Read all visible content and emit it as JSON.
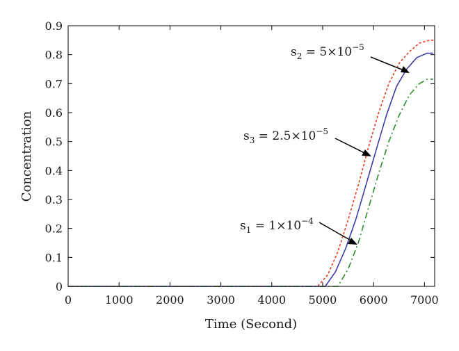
{
  "chart_data": {
    "type": "line",
    "title": "",
    "xlabel": "Time (Second)",
    "ylabel": "Concentration",
    "xlim": [
      0,
      7200
    ],
    "ylim": [
      0,
      0.9
    ],
    "xticks": [
      0,
      1000,
      2000,
      3000,
      4000,
      5000,
      6000,
      7000
    ],
    "yticks": [
      0,
      0.1,
      0.2,
      0.3,
      0.4,
      0.5,
      0.6,
      0.7,
      0.8,
      0.9
    ],
    "xtick_labels": [
      "0",
      "1000",
      "2000",
      "3000",
      "4000",
      "5000",
      "6000",
      "7000"
    ],
    "ytick_labels": [
      "0",
      "0.1",
      "0.2",
      "0.3",
      "0.4",
      "0.5",
      "0.6",
      "0.7",
      "0.8",
      "0.9"
    ],
    "grid": false,
    "series": [
      {
        "name": "",
        "color": "#e8361a",
        "style": "dotted",
        "x": [
          0,
          4900,
          5100,
          5300,
          5500,
          5700,
          5900,
          6100,
          6300,
          6500,
          6700,
          6900,
          7100,
          7170
        ],
        "y": [
          0,
          0,
          0.04,
          0.12,
          0.23,
          0.35,
          0.48,
          0.6,
          0.7,
          0.77,
          0.81,
          0.84,
          0.85,
          0.85
        ]
      },
      {
        "name": "",
        "color": "#3b3ba8",
        "style": "solid",
        "x": [
          0,
          5050,
          5250,
          5450,
          5650,
          5850,
          6050,
          6250,
          6450,
          6650,
          6850,
          7050,
          7170
        ],
        "y": [
          0,
          0,
          0.05,
          0.13,
          0.23,
          0.35,
          0.47,
          0.59,
          0.69,
          0.75,
          0.79,
          0.805,
          0.805
        ]
      },
      {
        "name": "",
        "color": "#2e8b2e",
        "style": "dashdot",
        "x": [
          0,
          5300,
          5500,
          5700,
          5900,
          6100,
          6300,
          6500,
          6700,
          6900,
          7050,
          7170
        ],
        "y": [
          0,
          0,
          0.06,
          0.15,
          0.27,
          0.39,
          0.5,
          0.59,
          0.66,
          0.7,
          0.715,
          0.715
        ]
      }
    ],
    "annotations": [
      {
        "name": "s",
        "sub": "2",
        "eq": " = 5×10",
        "sup": "−5"
      },
      {
        "name": "s",
        "sub": "3",
        "eq": " = 2.5×10",
        "sup": "−5"
      },
      {
        "name": "s",
        "sub": "1",
        "eq": " = 1×10",
        "sup": "−4"
      }
    ]
  }
}
